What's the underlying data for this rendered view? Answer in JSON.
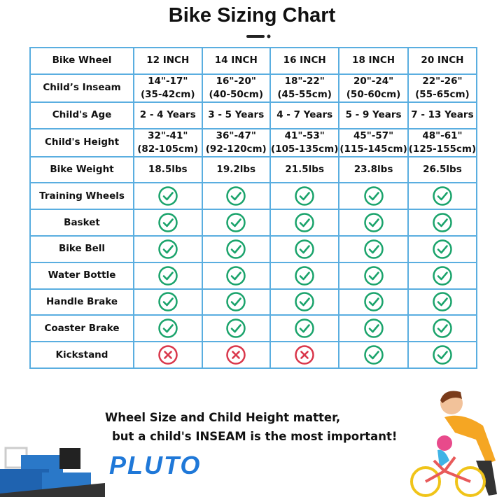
{
  "title": "Bike Sizing Chart",
  "table": {
    "header": {
      "label": "Bike Wheel",
      "cells": [
        "12 INCH",
        "14 INCH",
        "16 INCH",
        "18 INCH",
        "20 INCH"
      ]
    },
    "rows": [
      {
        "label": "Child’s Inseam",
        "cells": [
          [
            "14\"-17\"",
            "(35-42cm)"
          ],
          [
            "16\"-20\"",
            "(40-50cm)"
          ],
          [
            "18\"-22\"",
            "(45-55cm)"
          ],
          [
            "20\"-24\"",
            "(50-60cm)"
          ],
          [
            "22\"-26\"",
            "(55-65cm)"
          ]
        ]
      },
      {
        "label": "Child's Age",
        "cells": [
          "2 - 4 Years",
          "3 - 5 Years",
          "4 - 7 Years",
          "5 - 9 Years",
          "7 - 13 Years"
        ]
      },
      {
        "label": "Child's Height",
        "cells": [
          [
            "32\"-41\"",
            "(82-105cm)"
          ],
          [
            "36\"-47\"",
            "(92-120cm)"
          ],
          [
            "41\"-53\"",
            "(105-135cm)"
          ],
          [
            "45\"-57\"",
            "(115-145cm)"
          ],
          [
            "48\"-61\"",
            "(125-155cm)"
          ]
        ]
      },
      {
        "label": "Bike Weight",
        "cells": [
          "18.5lbs",
          "19.2lbs",
          "21.5lbs",
          "23.8lbs",
          "26.5lbs"
        ]
      },
      {
        "label": "Training Wheels",
        "cells": [
          true,
          true,
          true,
          true,
          true
        ]
      },
      {
        "label": "Basket",
        "cells": [
          true,
          true,
          true,
          true,
          true
        ]
      },
      {
        "label": "Bike Bell",
        "cells": [
          true,
          true,
          true,
          true,
          true
        ]
      },
      {
        "label": "Water Bottle",
        "cells": [
          true,
          true,
          true,
          true,
          true
        ]
      },
      {
        "label": "Handle Brake",
        "cells": [
          true,
          true,
          true,
          true,
          true
        ]
      },
      {
        "label": "Coaster Brake",
        "cells": [
          true,
          true,
          true,
          true,
          true
        ]
      },
      {
        "label": "Kickstand",
        "cells": [
          false,
          false,
          false,
          true,
          true
        ]
      }
    ]
  },
  "footer": {
    "line1": "Wheel Size and Child Height matter,",
    "line2": "but a child's INSEAM is the most important!"
  },
  "brand": "PLUTO"
}
